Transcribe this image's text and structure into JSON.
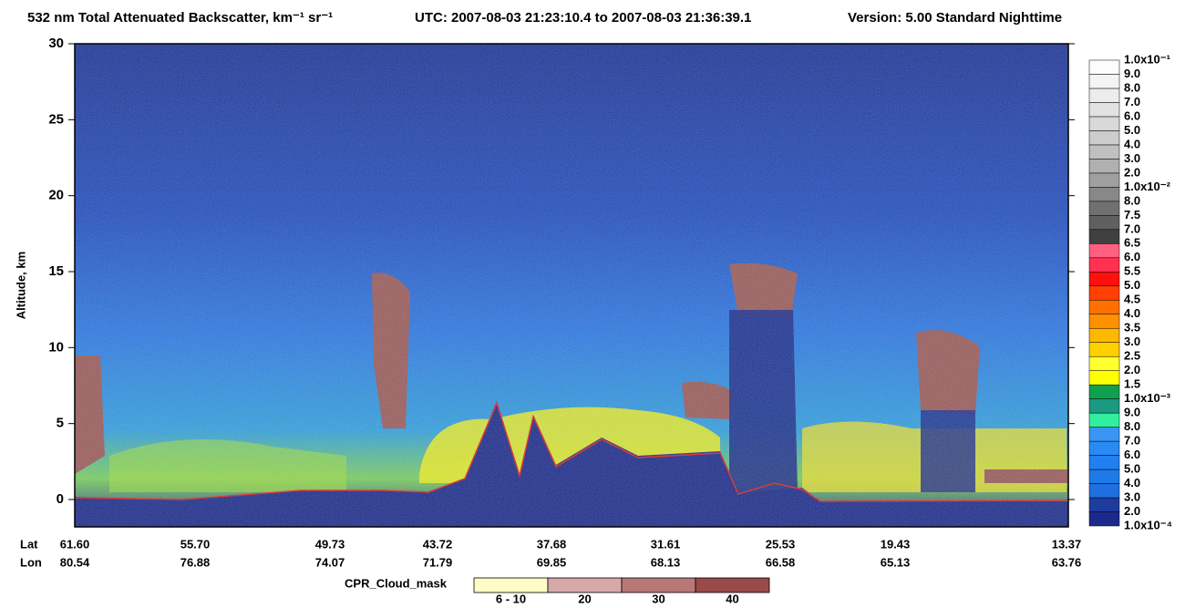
{
  "chart_data": {
    "type": "curtain",
    "title": "532 nm Total Attenuated Backscatter, km⁻¹ sr⁻¹",
    "time_range": "UTC:  2007-08-03 21:23:10.4  to  2007-08-03 21:36:39.1",
    "version": "Version: 5.00  Standard  Nighttime",
    "ylabel": "Altitude, km",
    "ylim": [
      -1.8,
      30
    ],
    "yticks": [
      0,
      5,
      10,
      15,
      20,
      25,
      30
    ],
    "x_rows": [
      {
        "name": "Lat",
        "labels": [
          "61.60",
          "55.70",
          "49.73",
          "43.72",
          "37.68",
          "31.61",
          "25.53",
          "19.43",
          "13.37"
        ]
      },
      {
        "name": "Lon",
        "labels": [
          "80.54",
          "76.88",
          "74.07",
          "71.79",
          "69.85",
          "68.13",
          "66.58",
          "65.13",
          "63.76"
        ]
      }
    ],
    "colorbar": {
      "labels": [
        "1.0x10⁻⁴",
        "2.0",
        "3.0",
        "4.0",
        "5.0",
        "6.0",
        "7.0",
        "8.0",
        "9.0",
        "1.0x10⁻³",
        "1.5",
        "2.0",
        "2.5",
        "3.0",
        "3.5",
        "4.0",
        "4.5",
        "5.0",
        "5.5",
        "6.0",
        "6.5",
        "7.0",
        "7.5",
        "8.0",
        "1.0x10⁻²",
        "2.0",
        "3.0",
        "4.0",
        "5.0",
        "6.0",
        "7.0",
        "8.0",
        "9.0",
        "1.0x10⁻¹"
      ],
      "colors": [
        "#1a2a8c",
        "#1e3ca0",
        "#1f6fe0",
        "#1f7ae8",
        "#2080f0",
        "#2a8af5",
        "#3a95f5",
        "#30f0a0",
        "#1a9a80",
        "#10a050",
        "#ffff00",
        "#ffff30",
        "#ffd000",
        "#ffb800",
        "#ff9000",
        "#ff7000",
        "#ff4000",
        "#ff1010",
        "#ff3050",
        "#ff6080",
        "#404040",
        "#606060",
        "#707070",
        "#888888",
        "#a0a0a0",
        "#b0b0b0",
        "#c0c0c0",
        "#cccccc",
        "#d8d8d8",
        "#e2e2e2",
        "#ececec",
        "#f4f4f4",
        "#fcfcfc"
      ]
    },
    "cloud_mask": {
      "label": "CPR_Cloud_mask",
      "categories": [
        "6 - 10",
        "20",
        "30",
        "40"
      ],
      "colors": [
        "#fffcc8",
        "#d6a8a8",
        "#b87878",
        "#9a4a4a"
      ]
    }
  }
}
